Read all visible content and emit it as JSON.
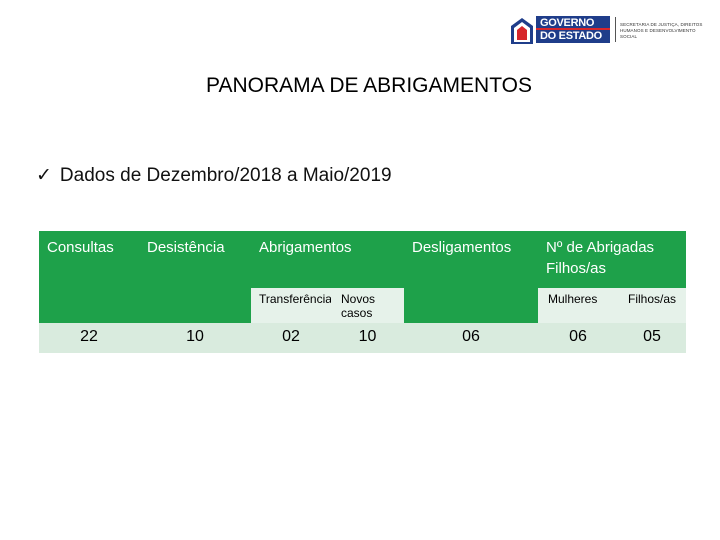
{
  "logo": {
    "line1": "GOVERNO",
    "line2": "DO ESTADO",
    "org_text": "SECRETARIA DE JUSTIÇA, DIREITOS HUMANOS E DESENVOLVIMENTO SOCIAL",
    "colors": {
      "blue": "#1f3d8a",
      "red": "#d6262b"
    }
  },
  "title": "PANORAMA DE ABRIGAMENTOS",
  "subtitle": {
    "check_icon": "✓",
    "text": "Dados de Dezembro/2018 a Maio/2019"
  },
  "table": {
    "header_color": "#1ea14a",
    "headers": {
      "consultas": "Consultas",
      "desistencia": "Desistência",
      "abrigamentos": "Abrigamentos",
      "desligamentos": "Desligamentos",
      "abrigadas": "Nº de Abrigadas Filhos/as"
    },
    "subheaders": {
      "transferencia": "Transferência",
      "novos_casos": "Novos casos",
      "mulheres": "Mulheres",
      "filhos": "Filhos/as"
    },
    "values": {
      "consultas": "22",
      "desistencia": "10",
      "transferencia": "02",
      "novos_casos": "10",
      "desligamentos": "06",
      "mulheres": "06",
      "filhos": "05"
    }
  }
}
